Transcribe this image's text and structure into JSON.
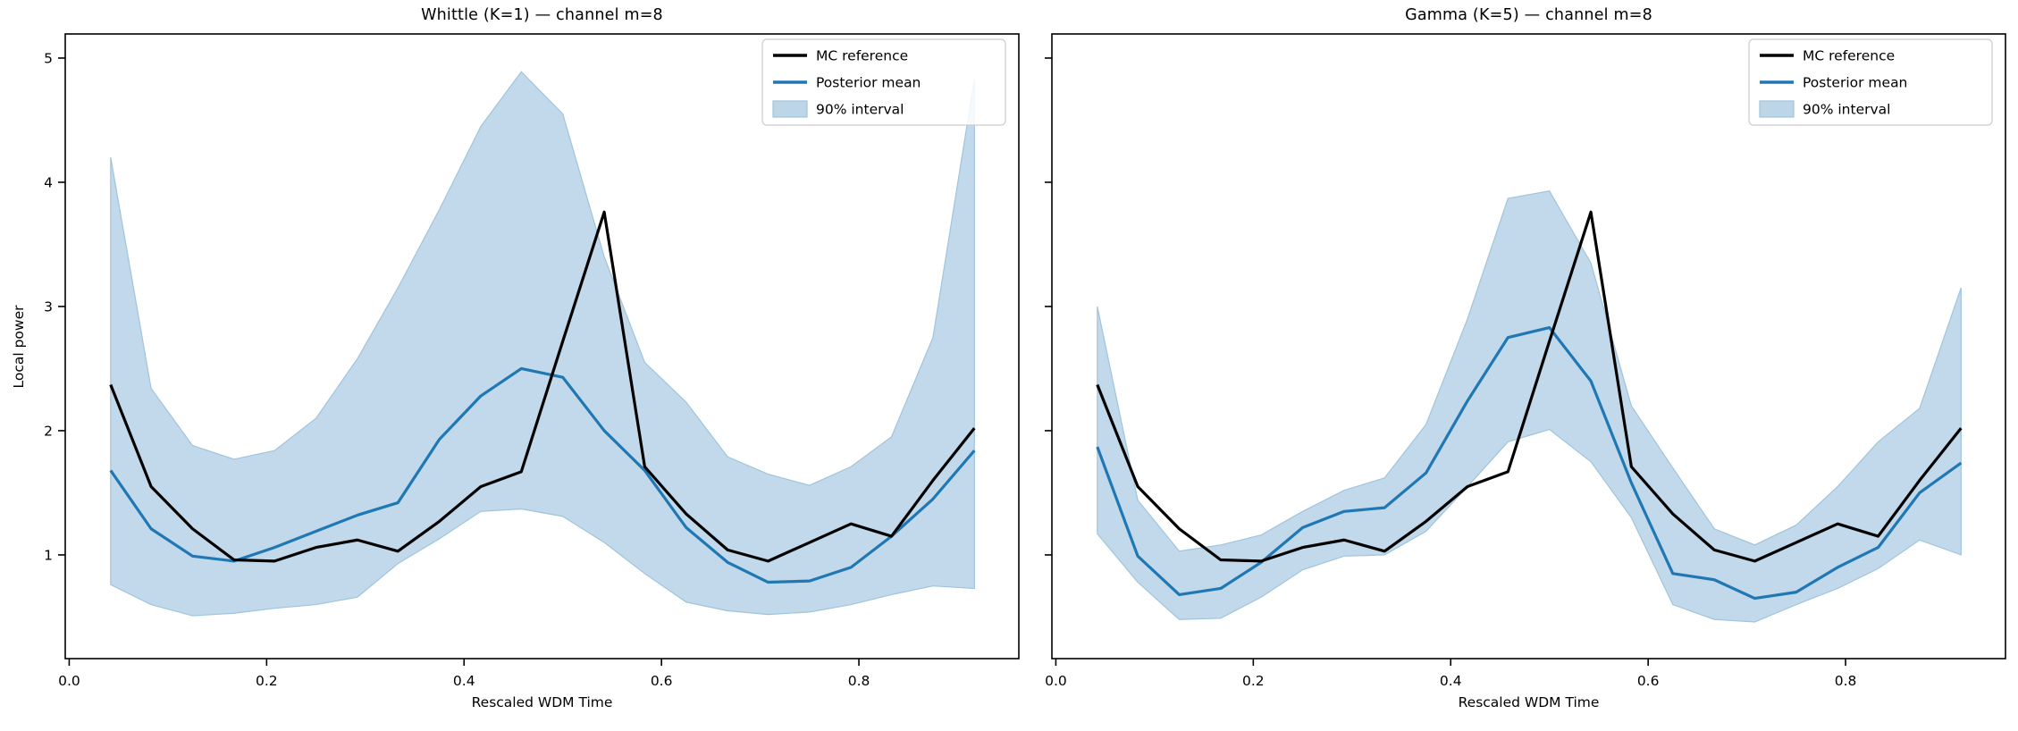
{
  "chart_data": [
    {
      "type": "line",
      "title": "Whittle (K=1)  —  channel m=8",
      "xlabel": "Rescaled WDM Time",
      "ylabel": "Local power",
      "xlim": [
        -0.004,
        0.962
      ],
      "ylim": [
        0.165,
        5.194
      ],
      "x_ticks": [
        0.0,
        0.2,
        0.4,
        0.6,
        0.8
      ],
      "x_tick_labels": [
        "0.0",
        "0.2",
        "0.4",
        "0.6",
        "0.8"
      ],
      "y_ticks": [
        1,
        2,
        3,
        4,
        5
      ],
      "y_tick_labels": [
        "1",
        "2",
        "3",
        "4",
        "5"
      ],
      "grid": false,
      "legend_position": "upper right",
      "legend": [
        "MC reference",
        "Posterior mean",
        "90% interval"
      ],
      "colors": {
        "mc_reference": "#000000",
        "posterior_mean": "#1f77b4",
        "interval_fill": "#bcd6e8",
        "interval_edge": "#a0c4dc"
      },
      "x": [
        0.042,
        0.083,
        0.125,
        0.167,
        0.208,
        0.25,
        0.292,
        0.333,
        0.375,
        0.417,
        0.458,
        0.5,
        0.542,
        0.583,
        0.625,
        0.667,
        0.708,
        0.75,
        0.792,
        0.833,
        0.875,
        0.917
      ],
      "series": [
        {
          "name": "MC reference",
          "values": [
            2.37,
            1.55,
            1.21,
            0.96,
            0.95,
            1.06,
            1.12,
            1.03,
            1.27,
            1.55,
            1.67,
            2.72,
            3.76,
            1.71,
            1.33,
            1.04,
            0.95,
            1.1,
            1.25,
            1.15,
            1.6,
            2.02
          ]
        },
        {
          "name": "Posterior mean",
          "values": [
            1.68,
            1.21,
            0.99,
            0.95,
            1.06,
            1.19,
            1.32,
            1.42,
            1.93,
            2.28,
            2.5,
            2.43,
            2.0,
            1.68,
            1.22,
            0.94,
            0.78,
            0.79,
            0.9,
            1.15,
            1.45,
            1.84
          ]
        },
        {
          "name": "90% interval lower",
          "values": [
            0.76,
            0.6,
            0.51,
            0.53,
            0.57,
            0.6,
            0.66,
            0.93,
            1.13,
            1.35,
            1.37,
            1.31,
            1.1,
            0.85,
            0.62,
            0.55,
            0.52,
            0.54,
            0.6,
            0.68,
            0.75,
            0.73
          ]
        },
        {
          "name": "90% interval upper",
          "values": [
            4.2,
            2.34,
            1.88,
            1.77,
            1.84,
            2.1,
            2.58,
            3.15,
            3.78,
            4.45,
            4.89,
            4.55,
            3.4,
            2.55,
            2.23,
            1.79,
            1.65,
            1.56,
            1.71,
            1.95,
            2.75,
            4.83
          ]
        }
      ]
    },
    {
      "type": "line",
      "title": "Gamma (K=5)  —  channel m=8",
      "xlabel": "Rescaled WDM Time",
      "ylabel": "",
      "xlim": [
        -0.004,
        0.962
      ],
      "ylim": [
        0.165,
        5.194
      ],
      "x_ticks": [
        0.0,
        0.2,
        0.4,
        0.6,
        0.8
      ],
      "x_tick_labels": [
        "0.0",
        "0.2",
        "0.4",
        "0.6",
        "0.8"
      ],
      "y_ticks": [
        1,
        2,
        3,
        4,
        5
      ],
      "y_tick_labels": [],
      "grid": false,
      "legend_position": "upper right",
      "legend": [
        "MC reference",
        "Posterior mean",
        "90% interval"
      ],
      "colors": {
        "mc_reference": "#000000",
        "posterior_mean": "#1f77b4",
        "interval_fill": "#bcd6e8",
        "interval_edge": "#a0c4dc"
      },
      "x": [
        0.042,
        0.083,
        0.125,
        0.167,
        0.208,
        0.25,
        0.292,
        0.333,
        0.375,
        0.417,
        0.458,
        0.5,
        0.542,
        0.583,
        0.625,
        0.667,
        0.708,
        0.75,
        0.792,
        0.833,
        0.875,
        0.917
      ],
      "series": [
        {
          "name": "MC reference",
          "values": [
            2.37,
            1.55,
            1.21,
            0.96,
            0.95,
            1.06,
            1.12,
            1.03,
            1.27,
            1.55,
            1.67,
            2.72,
            3.76,
            1.71,
            1.33,
            1.04,
            0.95,
            1.1,
            1.25,
            1.15,
            1.6,
            2.02
          ]
        },
        {
          "name": "Posterior mean",
          "values": [
            1.87,
            0.99,
            0.68,
            0.73,
            0.94,
            1.22,
            1.35,
            1.38,
            1.66,
            2.24,
            2.75,
            2.83,
            2.4,
            1.58,
            0.85,
            0.8,
            0.65,
            0.7,
            0.9,
            1.06,
            1.5,
            1.74
          ]
        },
        {
          "name": "90% interval lower",
          "values": [
            1.17,
            0.78,
            0.48,
            0.49,
            0.66,
            0.88,
            0.99,
            1.0,
            1.19,
            1.55,
            1.91,
            2.01,
            1.75,
            1.3,
            0.6,
            0.48,
            0.46,
            0.6,
            0.73,
            0.89,
            1.12,
            1.0
          ]
        },
        {
          "name": "90% interval upper",
          "values": [
            3.0,
            1.44,
            1.03,
            1.08,
            1.16,
            1.35,
            1.52,
            1.62,
            2.05,
            2.9,
            3.87,
            3.93,
            3.35,
            2.2,
            1.7,
            1.21,
            1.08,
            1.24,
            1.55,
            1.91,
            2.18,
            3.15
          ]
        }
      ]
    }
  ]
}
